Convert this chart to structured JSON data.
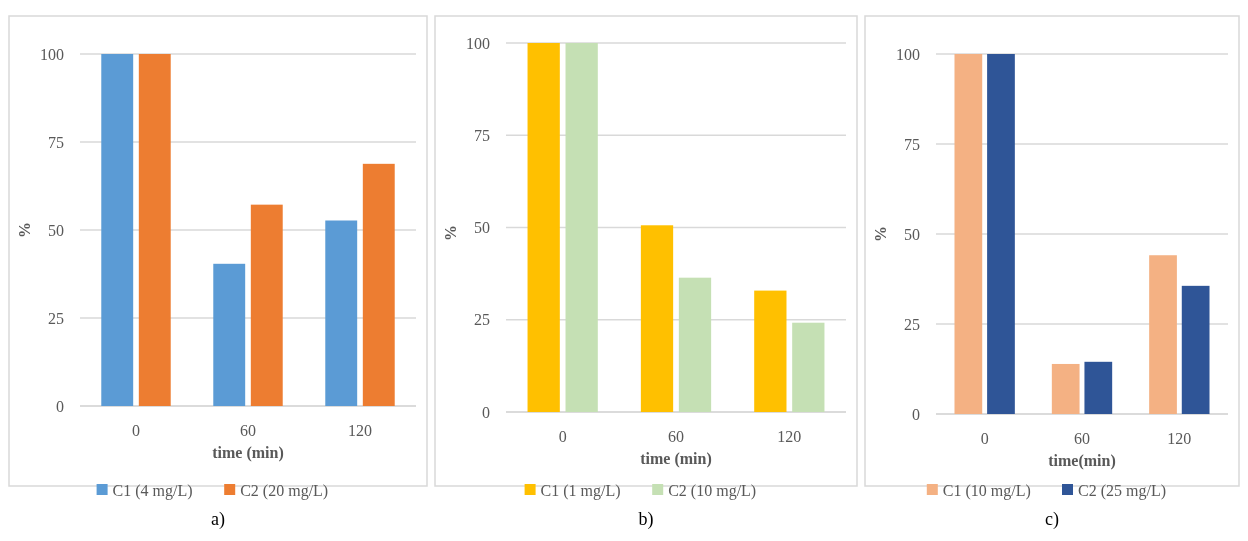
{
  "chart_data": [
    {
      "type": "bar",
      "categories": [
        "0",
        "60",
        "120"
      ],
      "xlabel": "time (min)",
      "ylabel": "%",
      "ylim": [
        0,
        100
      ],
      "yticks": [
        0,
        25,
        50,
        75,
        100
      ],
      "grid": "y",
      "legend": "bottom",
      "annotations": [
        "a)"
      ],
      "series": [
        {
          "name": "C1 (4 mg/L)",
          "color": "#5b9bd5",
          "values": [
            100,
            40.4,
            52.7
          ]
        },
        {
          "name": "C2 (20 mg/L)",
          "color": "#ed7d31",
          "values": [
            100,
            57.2,
            68.8
          ]
        }
      ]
    },
    {
      "type": "bar",
      "categories": [
        "0",
        "60",
        "120"
      ],
      "xlabel": "time (min)",
      "ylabel": "%",
      "ylim": [
        0,
        100
      ],
      "yticks": [
        0,
        25,
        50,
        75,
        100
      ],
      "grid": "y",
      "legend": "bottom",
      "annotations": [
        "b)"
      ],
      "series": [
        {
          "name": "C1 (1 mg/L)",
          "color": "#ffc000",
          "values": [
            100,
            50.6,
            32.9
          ]
        },
        {
          "name": "C2 (10 mg/L)",
          "color": "#c5e0b4",
          "values": [
            100,
            36.4,
            24.2
          ]
        }
      ]
    },
    {
      "type": "bar",
      "categories": [
        "0",
        "60",
        "120"
      ],
      "xlabel": "time(min)",
      "ylabel": "%",
      "ylim": [
        0,
        100
      ],
      "yticks": [
        0,
        25,
        50,
        75,
        100
      ],
      "grid": "y",
      "legend": "bottom",
      "annotations": [
        "c)"
      ],
      "series": [
        {
          "name": "C1 (10 mg/L)",
          "color": "#f4b183",
          "values": [
            100,
            13.9,
            44.1
          ]
        },
        {
          "name": "C2 (25 mg/L)",
          "color": "#2f5597",
          "values": [
            100,
            14.5,
            35.6
          ]
        }
      ]
    }
  ]
}
